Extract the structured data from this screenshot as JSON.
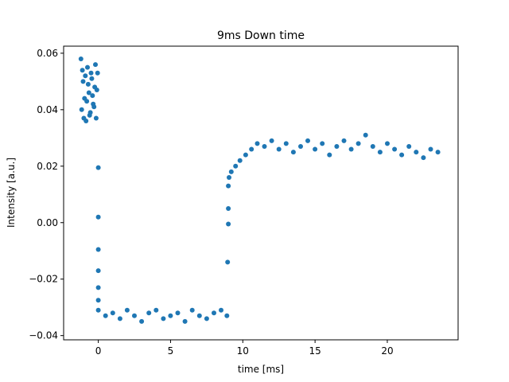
{
  "chart_data": {
    "type": "scatter",
    "title": "9ms Down time",
    "xlabel": "time [ms]",
    "ylabel": "Intensity [a.u.]",
    "xlim": [
      -2.4,
      24.9
    ],
    "ylim": [
      -0.0415,
      0.0625
    ],
    "x_ticks": [
      0,
      5,
      10,
      15,
      20
    ],
    "x_tick_labels": [
      "0",
      "5",
      "10",
      "15",
      "20"
    ],
    "y_ticks": [
      -0.04,
      -0.02,
      0.0,
      0.02,
      0.04,
      0.06
    ],
    "y_tick_labels": [
      "−0.04",
      "−0.02",
      "0.00",
      "0.02",
      "0.04",
      "0.06"
    ],
    "grid": false,
    "marker_color": "#1f77b4",
    "series": [
      {
        "name": "",
        "x": [
          -1.2,
          -1.1,
          -1.0,
          -0.9,
          -0.8,
          -0.7,
          -0.6,
          -0.5,
          -0.4,
          -0.3,
          -0.2,
          -0.1,
          -1.15,
          -1.05,
          -0.95,
          -0.85,
          -0.75,
          -0.65,
          -0.55,
          -0.45,
          -0.35,
          -0.25,
          -0.15,
          -0.05,
          0.0,
          0.0,
          0.0,
          0.0,
          0.0,
          0.0,
          0.0,
          0.5,
          1.0,
          1.5,
          2.0,
          2.5,
          3.0,
          3.5,
          4.0,
          4.5,
          5.0,
          5.5,
          6.0,
          6.5,
          7.0,
          7.5,
          8.0,
          8.5,
          8.9,
          8.95,
          9.0,
          9.0,
          9.0,
          9.05,
          9.2,
          9.5,
          9.8,
          10.2,
          10.6,
          11.0,
          11.5,
          12.0,
          12.5,
          13.0,
          13.5,
          14.0,
          14.5,
          15.0,
          15.5,
          16.0,
          16.5,
          17.0,
          17.5,
          18.0,
          18.5,
          19.0,
          19.5,
          20.0,
          20.5,
          21.0,
          21.5,
          22.0,
          22.5,
          23.0,
          23.5
        ],
        "y": [
          0.058,
          0.054,
          0.037,
          0.052,
          0.043,
          0.049,
          0.038,
          0.053,
          0.045,
          0.041,
          0.056,
          0.047,
          0.04,
          0.05,
          0.044,
          0.036,
          0.055,
          0.046,
          0.039,
          0.051,
          0.042,
          0.048,
          0.037,
          0.053,
          0.0195,
          0.002,
          -0.0095,
          -0.017,
          -0.023,
          -0.0275,
          -0.031,
          -0.033,
          -0.032,
          -0.034,
          -0.031,
          -0.033,
          -0.035,
          -0.032,
          -0.031,
          -0.034,
          -0.033,
          -0.032,
          -0.035,
          -0.031,
          -0.033,
          -0.034,
          -0.032,
          -0.031,
          -0.033,
          -0.014,
          -0.0005,
          0.005,
          0.013,
          0.016,
          0.018,
          0.02,
          0.022,
          0.024,
          0.026,
          0.028,
          0.027,
          0.029,
          0.026,
          0.028,
          0.025,
          0.027,
          0.029,
          0.026,
          0.028,
          0.024,
          0.027,
          0.029,
          0.026,
          0.028,
          0.031,
          0.027,
          0.025,
          0.028,
          0.026,
          0.024,
          0.027,
          0.025,
          0.023,
          0.026,
          0.025
        ]
      }
    ]
  }
}
